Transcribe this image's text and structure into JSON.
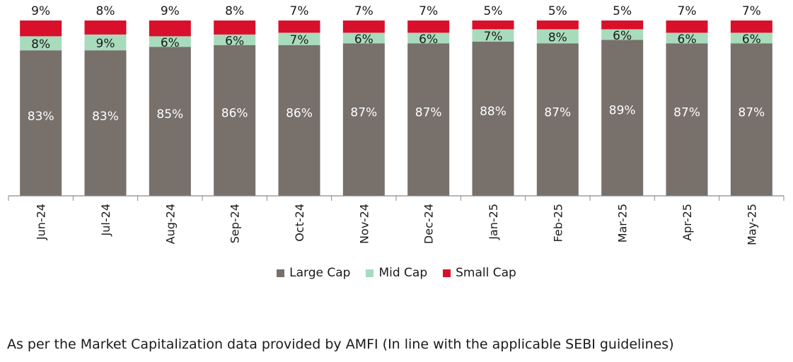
{
  "chart_data": {
    "type": "bar",
    "stacked": true,
    "categories": [
      "Jun-24",
      "Jul-24",
      "Aug-24",
      "Sep-24",
      "Oct-24",
      "Nov-24",
      "Dec-24",
      "Jan-25",
      "Feb-25",
      "Mar-25",
      "Apr-25",
      "May-25"
    ],
    "series": [
      {
        "name": "Large Cap",
        "color": "#77706b",
        "values": [
          83,
          83,
          85,
          86,
          86,
          87,
          87,
          88,
          87,
          89,
          87,
          87
        ],
        "labels": [
          "83%",
          "83%",
          "85%",
          "86%",
          "86%",
          "87%",
          "87%",
          "88%",
          "87%",
          "89%",
          "87%",
          "87%"
        ]
      },
      {
        "name": "Mid Cap",
        "color": "#a8dbbc",
        "values": [
          8,
          9,
          6,
          6,
          7,
          6,
          6,
          7,
          8,
          6,
          6,
          6
        ],
        "labels": [
          "8%",
          "9%",
          "6%",
          "6%",
          "7%",
          "6%",
          "6%",
          "7%",
          "8%",
          "6%",
          "6%",
          "6%"
        ]
      },
      {
        "name": "Small Cap",
        "color": "#d8102c",
        "values": [
          9,
          8,
          9,
          8,
          7,
          7,
          7,
          5,
          5,
          5,
          7,
          7
        ],
        "labels": [
          "9%",
          "8%",
          "9%",
          "8%",
          "7%",
          "7%",
          "7%",
          "5%",
          "5%",
          "5%",
          "7%",
          "7%"
        ]
      }
    ],
    "ylim": [
      0,
      100
    ],
    "grid": false,
    "legend_position": "bottom"
  },
  "footnote": "As per the Market Capitalization data provided by AMFI (In line with the applicable SEBI guidelines)"
}
